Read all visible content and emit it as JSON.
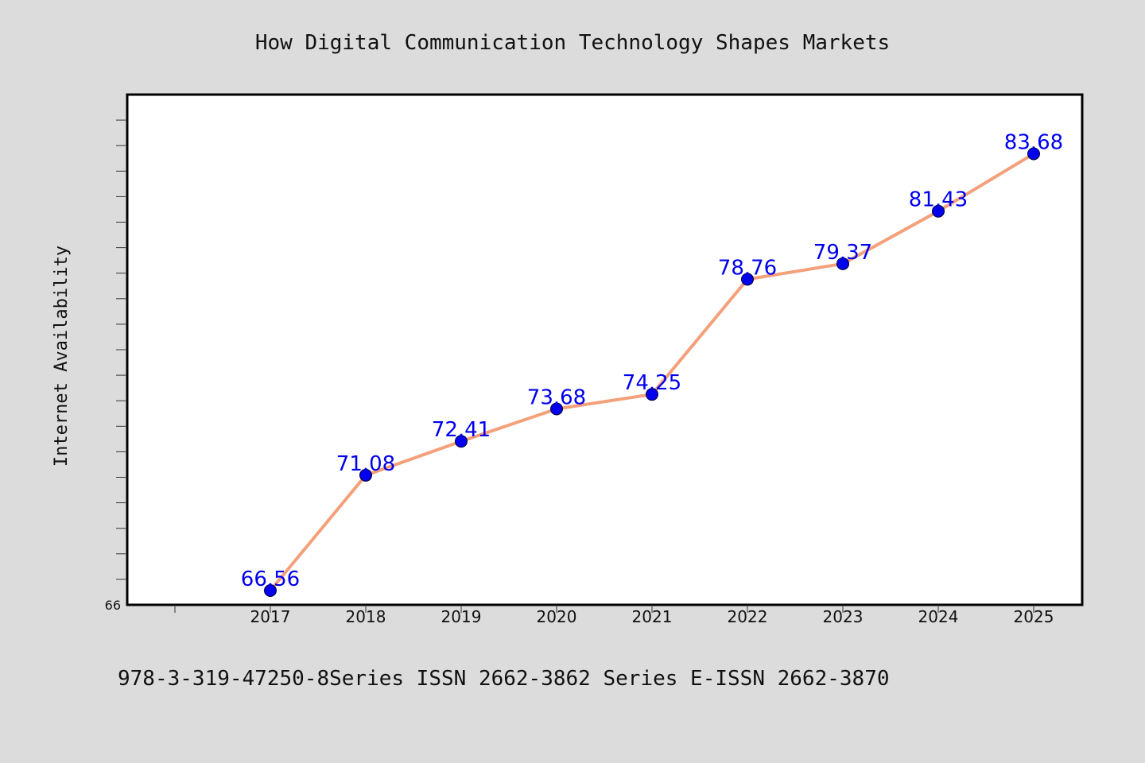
{
  "chart_data": {
    "type": "line",
    "title": "How Digital Communication Technology Shapes Markets",
    "xlabel": "",
    "ylabel": "Internet Availability",
    "categories": [
      "2017",
      "2018",
      "2019",
      "2020",
      "2021",
      "2022",
      "2023",
      "2024",
      "2025"
    ],
    "series": [
      {
        "values": [
          66.56,
          71.08,
          72.41,
          73.68,
          74.25,
          78.76,
          79.37,
          81.43,
          83.68
        ],
        "data_labels": [
          "66.56",
          "71.08",
          "72.41",
          "73.68",
          "74.25",
          "78.76",
          "79.37",
          "81.43",
          "83.68"
        ]
      }
    ],
    "ylim": [
      66,
      86
    ],
    "y_tick_labels": [
      "66"
    ],
    "grid": false,
    "colors": {
      "line": "#f4a07a",
      "marker": "#0000ee",
      "data_label": "#0000ee"
    }
  },
  "footer": "978-3-319-47250-8Series ISSN 2662-3862 Series E-ISSN 2662-3870"
}
